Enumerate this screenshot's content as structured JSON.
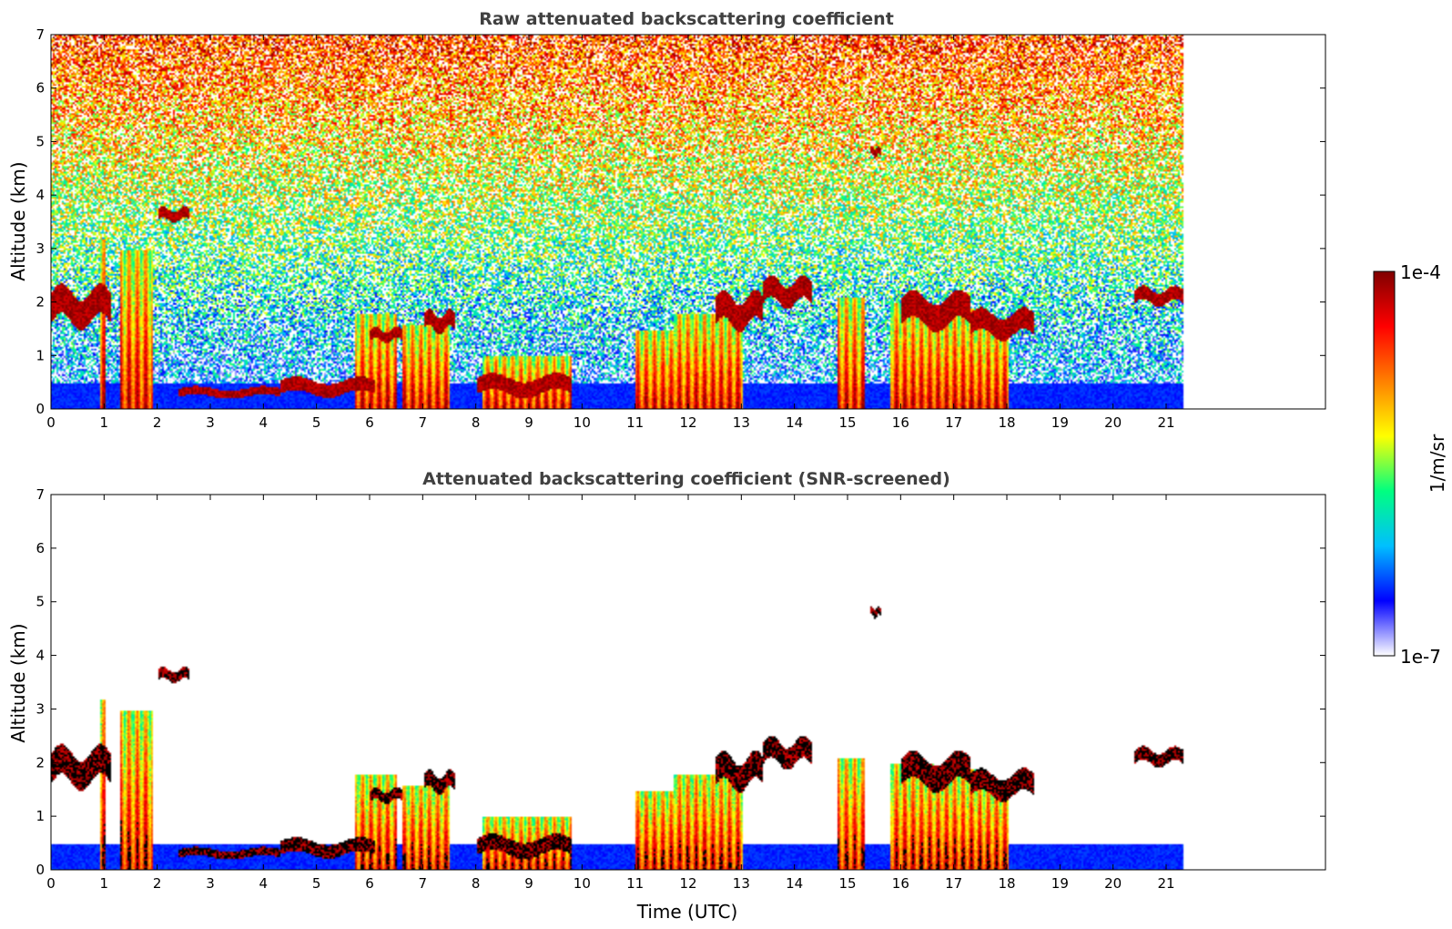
{
  "chart_data": [
    {
      "type": "heatmap",
      "title": "Raw attenuated backscattering coefficient",
      "xlabel": "",
      "ylabel": "Altitude (km)",
      "xlim": [
        0,
        24
      ],
      "ylim": [
        0,
        7
      ],
      "x_ticks": [
        "0",
        "1",
        "2",
        "3",
        "4",
        "5",
        "6",
        "7",
        "8",
        "9",
        "10",
        "11",
        "12",
        "13",
        "14",
        "15",
        "16",
        "17",
        "18",
        "19",
        "20",
        "21"
      ],
      "y_ticks": [
        "0",
        "1",
        "2",
        "3",
        "4",
        "5",
        "6",
        "7"
      ],
      "data_end_time": 21.3,
      "noise": "high",
      "features": [
        {
          "kind": "cloud_layer",
          "t0": 0.0,
          "t1": 1.1,
          "z0": 1.65,
          "z1": 2.2
        },
        {
          "kind": "cloud_layer",
          "t0": 2.0,
          "t1": 2.6,
          "z0": 3.55,
          "z1": 3.75
        },
        {
          "kind": "cloud_layer",
          "t0": 2.4,
          "t1": 4.3,
          "z0": 0.25,
          "z1": 0.4
        },
        {
          "kind": "cloud_layer",
          "t0": 4.3,
          "t1": 6.1,
          "z0": 0.3,
          "z1": 0.55
        },
        {
          "kind": "cloud_layer",
          "t0": 6.0,
          "t1": 6.6,
          "z0": 1.3,
          "z1": 1.5
        },
        {
          "kind": "cloud_layer",
          "t0": 7.0,
          "t1": 7.6,
          "z0": 1.5,
          "z1": 1.8
        },
        {
          "kind": "cloud_layer",
          "t0": 8.0,
          "t1": 9.8,
          "z0": 0.3,
          "z1": 0.6
        },
        {
          "kind": "cloud_layer",
          "t0": 12.5,
          "t1": 13.4,
          "z0": 1.6,
          "z1": 2.1
        },
        {
          "kind": "cloud_layer",
          "t0": 13.4,
          "t1": 14.3,
          "z0": 2.0,
          "z1": 2.4
        },
        {
          "kind": "cloud_layer",
          "t0": 15.4,
          "t1": 15.6,
          "z0": 4.75,
          "z1": 4.9
        },
        {
          "kind": "cloud_layer",
          "t0": 16.0,
          "t1": 17.3,
          "z0": 1.6,
          "z1": 2.1
        },
        {
          "kind": "cloud_layer",
          "t0": 17.3,
          "t1": 18.5,
          "z0": 1.4,
          "z1": 1.8
        },
        {
          "kind": "cloud_layer",
          "t0": 20.4,
          "t1": 21.3,
          "z0": 2.0,
          "z1": 2.25
        },
        {
          "kind": "precip_column",
          "t0": 0.9,
          "t1": 1.0,
          "z1": 3.2
        },
        {
          "kind": "precip_column",
          "t0": 1.3,
          "t1": 1.9,
          "z1": 3.0
        },
        {
          "kind": "precip_column",
          "t0": 5.7,
          "t1": 6.5,
          "z1": 1.8
        },
        {
          "kind": "precip_column",
          "t0": 6.6,
          "t1": 7.5,
          "z1": 1.6
        },
        {
          "kind": "precip_column",
          "t0": 8.1,
          "t1": 9.8,
          "z1": 1.0
        },
        {
          "kind": "precip_column",
          "t0": 11.0,
          "t1": 11.7,
          "z1": 1.5
        },
        {
          "kind": "precip_column",
          "t0": 11.7,
          "t1": 13.0,
          "z1": 1.8
        },
        {
          "kind": "precip_column",
          "t0": 14.8,
          "t1": 15.3,
          "z1": 2.1
        },
        {
          "kind": "precip_column",
          "t0": 15.8,
          "t1": 16.6,
          "z1": 2.0
        },
        {
          "kind": "precip_column",
          "t0": 16.6,
          "t1": 17.4,
          "z1": 1.9
        },
        {
          "kind": "precip_column",
          "t0": 17.4,
          "t1": 18.0,
          "z1": 1.7
        }
      ]
    },
    {
      "type": "heatmap",
      "title": "Attenuated backscattering coefficient (SNR-screened)",
      "xlabel": "Time (UTC)",
      "ylabel": "Altitude (km)",
      "xlim": [
        0,
        24
      ],
      "ylim": [
        0,
        7
      ],
      "x_ticks": [
        "0",
        "1",
        "2",
        "3",
        "4",
        "5",
        "6",
        "7",
        "8",
        "9",
        "10",
        "11",
        "12",
        "13",
        "14",
        "15",
        "16",
        "17",
        "18",
        "19",
        "20",
        "21"
      ],
      "y_ticks": [
        "0",
        "1",
        "2",
        "3",
        "4",
        "5",
        "6",
        "7"
      ],
      "data_end_time": 21.3,
      "noise": "screened",
      "features": "same as panel 1, low-SNR pixels removed, strongest returns in black"
    }
  ],
  "colorbar": {
    "label": "1/m/sr",
    "max_label": "1e-4",
    "min_label": "1e-7",
    "scale": "log",
    "colormap": [
      "#ffffff",
      "#0000ff",
      "#00bfff",
      "#00ff80",
      "#ffff00",
      "#ff8000",
      "#ff0000",
      "#800000"
    ]
  }
}
